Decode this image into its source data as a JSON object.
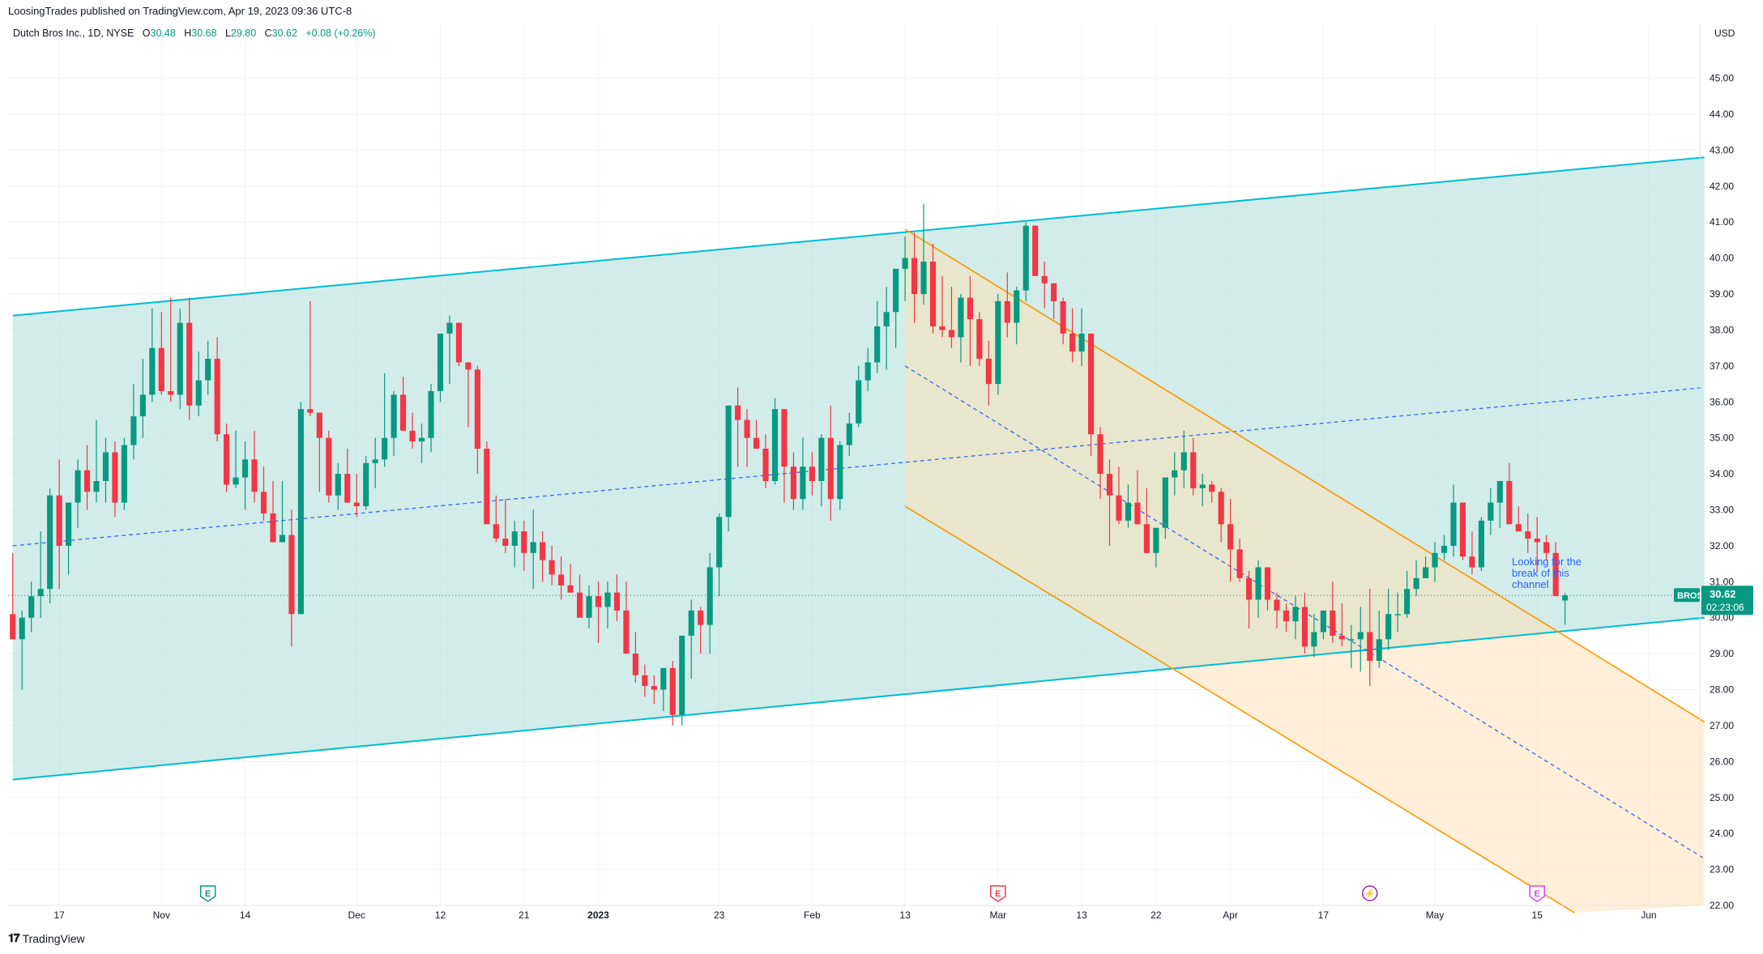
{
  "header": {
    "published": "LoosingTrades published on TradingView.com, Apr 19, 2023 09:36 UTC-8"
  },
  "legend": {
    "symbol": "Dutch Bros Inc., 1D, NYSE",
    "o_label": "O",
    "o_value": "30.48",
    "h_label": "H",
    "h_value": "30.68",
    "l_label": "L",
    "l_value": "29.80",
    "c_label": "C",
    "c_value": "30.62",
    "change": "+0.08 (+0.26%)"
  },
  "footer": {
    "brand": "TradingView"
  },
  "colors": {
    "up": "#089981",
    "down": "#F23645",
    "channel_teal": "#00BCD4",
    "channel_fill": "#B2DFDB",
    "down_channel": "#FF9800",
    "down_fill": "#FFE0B2",
    "midline": "#2962FF",
    "price_label": "#089981"
  },
  "chart_data": {
    "type": "candlestick",
    "currency": "USD",
    "ylim": [
      22,
      46
    ],
    "yticks": [
      "45.00",
      "44.00",
      "43.00",
      "42.00",
      "41.00",
      "40.00",
      "39.00",
      "38.00",
      "37.00",
      "36.00",
      "35.00",
      "34.00",
      "33.00",
      "32.00",
      "31.00",
      "30.00",
      "29.00",
      "28.00",
      "27.00",
      "26.00",
      "25.00",
      "24.00",
      "23.00",
      "22.00"
    ],
    "xticks": [
      "17",
      "Nov",
      "14",
      "Dec",
      "12",
      "21",
      "2023",
      "23",
      "Feb",
      "13",
      "Mar",
      "13",
      "22",
      "Apr",
      "17",
      "May",
      "15",
      "Jun"
    ],
    "xtick_index": [
      5,
      16,
      25,
      37,
      46,
      55,
      63,
      76,
      86,
      96,
      106,
      115,
      123,
      131,
      141,
      153,
      164,
      176
    ],
    "candles_ohlc": [
      [
        30.1,
        31.8,
        29.6,
        29.4
      ],
      [
        29.4,
        30.2,
        28.0,
        30.0
      ],
      [
        30.0,
        31.0,
        29.6,
        30.6
      ],
      [
        30.6,
        32.4,
        30.0,
        30.8
      ],
      [
        30.8,
        33.6,
        30.4,
        33.4
      ],
      [
        33.4,
        34.4,
        30.8,
        32.0
      ],
      [
        32.0,
        33.0,
        31.2,
        33.2
      ],
      [
        33.2,
        34.4,
        32.5,
        34.1
      ],
      [
        34.1,
        34.8,
        33.0,
        33.5
      ],
      [
        33.5,
        35.5,
        33.2,
        33.8
      ],
      [
        33.8,
        35.0,
        33.2,
        34.6
      ],
      [
        34.6,
        34.9,
        32.8,
        33.2
      ],
      [
        33.2,
        35.0,
        33.0,
        34.8
      ],
      [
        34.8,
        36.5,
        34.4,
        35.6
      ],
      [
        35.6,
        37.2,
        35.0,
        36.2
      ],
      [
        36.2,
        38.6,
        36.0,
        37.5
      ],
      [
        37.5,
        38.5,
        36.2,
        36.3
      ],
      [
        36.3,
        38.9,
        36.0,
        36.2
      ],
      [
        36.2,
        38.6,
        35.8,
        38.2
      ],
      [
        38.2,
        38.9,
        35.5,
        35.9
      ],
      [
        35.9,
        37.4,
        35.6,
        36.6
      ],
      [
        36.6,
        37.7,
        36.2,
        37.2
      ],
      [
        37.2,
        37.8,
        34.9,
        35.1
      ],
      [
        35.1,
        35.4,
        33.5,
        33.7
      ],
      [
        33.7,
        35.2,
        33.6,
        33.9
      ],
      [
        33.9,
        34.9,
        33.0,
        34.4
      ],
      [
        34.4,
        35.2,
        33.2,
        33.5
      ],
      [
        33.5,
        34.2,
        32.7,
        32.9
      ],
      [
        32.9,
        33.8,
        32.3,
        32.1
      ],
      [
        32.1,
        33.8,
        32.1,
        32.3
      ],
      [
        32.3,
        33.0,
        29.2,
        30.1
      ],
      [
        30.1,
        36.0,
        31.0,
        35.8
      ],
      [
        35.8,
        38.8,
        35.6,
        35.7
      ],
      [
        35.7,
        35.6,
        33.5,
        35.0
      ],
      [
        35.0,
        35.2,
        33.2,
        33.4
      ],
      [
        33.4,
        34.3,
        33.0,
        34.0
      ],
      [
        34.0,
        34.7,
        33.3,
        33.2
      ],
      [
        33.2,
        34.0,
        32.8,
        33.1
      ],
      [
        33.1,
        34.5,
        33.0,
        34.3
      ],
      [
        34.3,
        35.0,
        33.6,
        34.4
      ],
      [
        34.4,
        36.8,
        34.2,
        35.0
      ],
      [
        35.0,
        36.3,
        34.5,
        36.2
      ],
      [
        36.2,
        36.7,
        35.3,
        35.2
      ],
      [
        35.2,
        35.7,
        34.7,
        34.9
      ],
      [
        34.9,
        35.4,
        34.3,
        35.0
      ],
      [
        35.0,
        36.5,
        34.6,
        36.3
      ],
      [
        36.3,
        37.8,
        36.0,
        37.9
      ],
      [
        37.9,
        38.4,
        36.5,
        38.2
      ],
      [
        38.2,
        38.0,
        37.0,
        37.1
      ],
      [
        37.1,
        37.0,
        35.3,
        36.9
      ],
      [
        36.9,
        37.0,
        34.0,
        34.7
      ],
      [
        34.7,
        34.9,
        32.9,
        32.6
      ],
      [
        32.6,
        33.4,
        32.1,
        32.2
      ],
      [
        32.2,
        33.3,
        31.8,
        32.0
      ],
      [
        32.0,
        32.7,
        31.4,
        32.4
      ],
      [
        32.4,
        32.7,
        31.3,
        31.8
      ],
      [
        31.8,
        33.0,
        30.8,
        32.1
      ],
      [
        32.1,
        32.4,
        31.0,
        31.6
      ],
      [
        31.6,
        32.0,
        30.9,
        31.2
      ],
      [
        31.2,
        31.7,
        30.5,
        30.9
      ],
      [
        30.9,
        31.5,
        30.7,
        30.7
      ],
      [
        30.7,
        31.2,
        30.2,
        30.0
      ],
      [
        30.0,
        30.9,
        29.7,
        30.6
      ],
      [
        30.6,
        31.0,
        29.3,
        30.3
      ],
      [
        30.3,
        31.0,
        29.7,
        30.7
      ],
      [
        30.7,
        31.2,
        29.9,
        30.2
      ],
      [
        30.2,
        31.0,
        29.2,
        29.0
      ],
      [
        29.0,
        29.6,
        28.2,
        28.4
      ],
      [
        28.4,
        28.7,
        27.8,
        28.1
      ],
      [
        28.1,
        28.4,
        27.6,
        28.0
      ],
      [
        28.0,
        28.6,
        27.4,
        28.6
      ],
      [
        28.6,
        28.8,
        27.0,
        27.3
      ],
      [
        27.3,
        29.4,
        27.0,
        29.5
      ],
      [
        29.5,
        30.5,
        28.3,
        30.2
      ],
      [
        30.2,
        30.3,
        29.0,
        29.8
      ],
      [
        29.8,
        31.8,
        29.0,
        31.4
      ],
      [
        31.4,
        32.9,
        30.6,
        32.8
      ],
      [
        32.8,
        35.9,
        32.4,
        35.9
      ],
      [
        35.9,
        36.4,
        34.2,
        35.5
      ],
      [
        35.5,
        35.8,
        34.2,
        35.0
      ],
      [
        35.0,
        35.5,
        34.8,
        34.7
      ],
      [
        34.7,
        35.1,
        33.6,
        33.8
      ],
      [
        33.8,
        36.1,
        33.7,
        35.8
      ],
      [
        35.8,
        35.8,
        33.2,
        34.2
      ],
      [
        34.2,
        34.6,
        33.0,
        33.3
      ],
      [
        33.3,
        35.0,
        33.0,
        34.2
      ],
      [
        34.2,
        34.6,
        33.4,
        33.8
      ],
      [
        33.8,
        35.1,
        33.1,
        35.0
      ],
      [
        35.0,
        35.9,
        32.7,
        33.3
      ],
      [
        33.3,
        34.9,
        33.0,
        34.8
      ],
      [
        34.8,
        35.7,
        34.5,
        35.4
      ],
      [
        35.4,
        37.0,
        35.3,
        36.6
      ],
      [
        36.6,
        37.5,
        36.3,
        37.1
      ],
      [
        37.1,
        38.8,
        36.8,
        38.1
      ],
      [
        38.1,
        39.2,
        36.9,
        38.5
      ],
      [
        38.5,
        39.5,
        37.5,
        39.7
      ],
      [
        39.7,
        40.6,
        38.8,
        40.0
      ],
      [
        40.0,
        40.7,
        38.2,
        39.0
      ],
      [
        39.0,
        41.5,
        38.7,
        39.9
      ],
      [
        39.9,
        40.4,
        37.9,
        38.1
      ],
      [
        38.1,
        39.5,
        37.8,
        38.0
      ],
      [
        38.0,
        39.2,
        37.5,
        37.8
      ],
      [
        37.8,
        39.0,
        37.1,
        38.9
      ],
      [
        38.9,
        39.5,
        37.0,
        38.3
      ],
      [
        38.3,
        38.5,
        37.0,
        37.2
      ],
      [
        37.2,
        37.7,
        35.9,
        36.5
      ],
      [
        36.5,
        39.0,
        36.2,
        38.8
      ],
      [
        38.8,
        39.6,
        37.8,
        38.2
      ],
      [
        38.2,
        39.2,
        37.6,
        39.1
      ],
      [
        39.1,
        41.0,
        38.8,
        40.9
      ],
      [
        40.9,
        40.1,
        39.6,
        39.5
      ],
      [
        39.5,
        39.9,
        38.6,
        39.3
      ],
      [
        39.3,
        39.3,
        38.3,
        38.8
      ],
      [
        38.8,
        38.9,
        37.6,
        37.9
      ],
      [
        37.9,
        38.6,
        37.1,
        37.4
      ],
      [
        37.4,
        38.6,
        37.0,
        37.9
      ],
      [
        37.9,
        36.5,
        34.5,
        35.1
      ],
      [
        35.1,
        35.3,
        33.3,
        34.0
      ],
      [
        34.0,
        34.4,
        32.0,
        33.4
      ],
      [
        33.4,
        34.2,
        32.6,
        32.7
      ],
      [
        32.7,
        33.7,
        32.5,
        33.2
      ],
      [
        33.2,
        34.1,
        32.8,
        32.6
      ],
      [
        32.6,
        33.6,
        32.3,
        31.8
      ],
      [
        31.8,
        32.3,
        31.4,
        32.5
      ],
      [
        32.5,
        33.9,
        32.2,
        33.9
      ],
      [
        33.9,
        34.6,
        33.4,
        34.1
      ],
      [
        34.1,
        35.2,
        33.6,
        34.6
      ],
      [
        34.6,
        35.0,
        33.4,
        33.6
      ],
      [
        33.6,
        34.0,
        33.1,
        33.7
      ],
      [
        33.7,
        33.8,
        33.2,
        33.5
      ],
      [
        33.5,
        33.6,
        32.1,
        32.6
      ],
      [
        32.6,
        33.3,
        31.0,
        31.9
      ],
      [
        31.9,
        32.2,
        31.0,
        31.1
      ],
      [
        31.1,
        31.3,
        29.7,
        30.5
      ],
      [
        30.5,
        31.6,
        30.0,
        31.4
      ],
      [
        31.4,
        31.3,
        30.2,
        30.5
      ],
      [
        30.5,
        30.7,
        29.7,
        30.2
      ],
      [
        30.2,
        30.4,
        29.6,
        29.9
      ],
      [
        29.9,
        30.6,
        29.4,
        30.3
      ],
      [
        30.3,
        30.7,
        29.0,
        29.2
      ],
      [
        29.2,
        30.1,
        28.9,
        29.6
      ],
      [
        29.6,
        30.0,
        29.4,
        30.2
      ],
      [
        30.2,
        31.0,
        29.3,
        29.5
      ],
      [
        29.5,
        30.4,
        29.2,
        29.4
      ],
      [
        29.4,
        29.8,
        28.6,
        29.4
      ],
      [
        29.4,
        30.3,
        28.5,
        29.6
      ],
      [
        29.6,
        30.8,
        28.1,
        28.8
      ],
      [
        28.8,
        30.2,
        28.6,
        29.4
      ],
      [
        29.4,
        30.8,
        29.1,
        30.1
      ],
      [
        30.1,
        30.7,
        29.6,
        30.1
      ],
      [
        30.1,
        31.3,
        30.0,
        30.8
      ],
      [
        30.8,
        31.6,
        30.6,
        31.1
      ],
      [
        31.1,
        31.7,
        31.1,
        31.4
      ],
      [
        31.4,
        32.1,
        31.0,
        31.8
      ],
      [
        31.8,
        32.3,
        31.6,
        32.0
      ],
      [
        32.0,
        33.7,
        31.7,
        33.2
      ],
      [
        33.2,
        32.6,
        31.6,
        31.7
      ],
      [
        31.7,
        32.4,
        31.2,
        31.4
      ],
      [
        31.4,
        32.8,
        31.3,
        32.7
      ],
      [
        32.7,
        33.6,
        32.3,
        33.2
      ],
      [
        33.2,
        33.8,
        32.5,
        33.8
      ],
      [
        33.8,
        34.3,
        33.0,
        32.6
      ],
      [
        32.6,
        33.1,
        32.4,
        32.4
      ],
      [
        32.4,
        32.9,
        31.8,
        32.2
      ],
      [
        32.2,
        32.8,
        31.3,
        32.1
      ],
      [
        32.1,
        32.3,
        31.6,
        31.8
      ],
      [
        31.8,
        32.1,
        31.2,
        30.6
      ],
      [
        30.48,
        30.68,
        29.8,
        30.62
      ]
    ],
    "last_price": "30.62",
    "symbol_tag": "BROS",
    "countdown": "02:23:06",
    "annotation": [
      "Looking for the",
      "break of this",
      "channel"
    ],
    "event_markers": [
      {
        "index": 21,
        "label": "E",
        "kind": "earnings"
      },
      {
        "index": 106,
        "label": "E",
        "kind": "earnings"
      },
      {
        "index": 146,
        "label": "⚡",
        "kind": "dividend"
      },
      {
        "index": 164,
        "label": "E",
        "kind": "earnings"
      }
    ],
    "rising_channel": {
      "upper": [
        [
          0,
          38.4
        ],
        [
          182,
          42.8
        ]
      ],
      "lower": [
        [
          0,
          25.5
        ],
        [
          182,
          30.0
        ]
      ],
      "mid": [
        [
          0,
          32.0
        ],
        [
          182,
          36.4
        ]
      ]
    },
    "falling_channel": {
      "upper": [
        [
          96,
          40.8
        ],
        [
          182,
          27.1
        ]
      ],
      "lower": [
        [
          96,
          33.1
        ],
        [
          168,
          21.8
        ]
      ],
      "mid": [
        [
          96,
          37.0
        ],
        [
          182,
          23.3
        ]
      ]
    }
  }
}
